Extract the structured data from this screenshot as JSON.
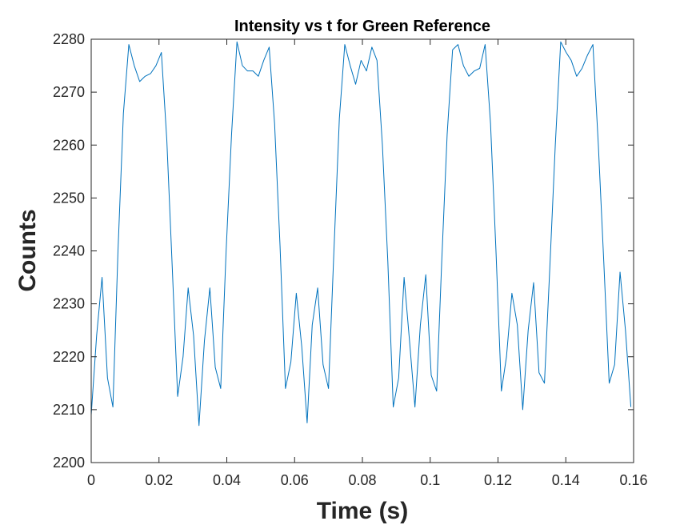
{
  "chart_data": {
    "type": "line",
    "title": "Intensity vs t for Green Reference",
    "xlabel": "Time (s)",
    "ylabel": "Counts",
    "xlim": [
      0,
      0.16
    ],
    "ylim": [
      2200,
      2280
    ],
    "grid": false,
    "legend": "none",
    "xticks": [
      "0",
      "0.02",
      "0.04",
      "0.06",
      "0.08",
      "0.1",
      "0.12",
      "0.14",
      "0.16"
    ],
    "yticks": [
      "2200",
      "2210",
      "2220",
      "2230",
      "2240",
      "2250",
      "2260",
      "2270",
      "2280"
    ],
    "series": [
      {
        "color": "#0072BD",
        "x": [
          0,
          0.0016,
          0.0032,
          0.0048,
          0.0064,
          0.0079,
          0.0095,
          0.0111,
          0.0127,
          0.0143,
          0.0159,
          0.0175,
          0.0191,
          0.0207,
          0.0223,
          0.0239,
          0.0255,
          0.0271,
          0.0286,
          0.0302,
          0.0318,
          0.0334,
          0.035,
          0.0366,
          0.0382,
          0.0398,
          0.0414,
          0.043,
          0.0446,
          0.0461,
          0.0477,
          0.0493,
          0.0509,
          0.0525,
          0.0541,
          0.0557,
          0.0573,
          0.0589,
          0.0605,
          0.0621,
          0.0637,
          0.0652,
          0.0668,
          0.0684,
          0.07,
          0.0716,
          0.0732,
          0.0748,
          0.0764,
          0.078,
          0.0796,
          0.0812,
          0.0828,
          0.0843,
          0.0859,
          0.0875,
          0.0891,
          0.0907,
          0.0923,
          0.0939,
          0.0955,
          0.0971,
          0.0987,
          0.1003,
          0.1019,
          0.1034,
          0.105,
          0.1066,
          0.1082,
          0.1098,
          0.1114,
          0.113,
          0.1146,
          0.1162,
          0.1178,
          0.1194,
          0.121,
          0.1225,
          0.1241,
          0.1257,
          0.1273,
          0.1289,
          0.1305,
          0.1321,
          0.1337,
          0.1353,
          0.1369,
          0.1385,
          0.1401,
          0.1416,
          0.1432,
          0.1448,
          0.1464,
          0.148,
          0.1496,
          0.1512,
          0.1528,
          0.1544,
          0.156,
          0.1576,
          0.1592
        ],
        "y": [
          2209,
          2224,
          2235,
          2216,
          2210.5,
          2240,
          2266,
          2279,
          2275,
          2272,
          2273,
          2273.5,
          2275,
          2277.5,
          2261,
          2237,
          2212.5,
          2220,
          2233,
          2224,
          2207,
          2223,
          2233,
          2218,
          2214,
          2240,
          2262,
          2279.5,
          2275,
          2274,
          2274,
          2273,
          2276,
          2278.5,
          2264,
          2241,
          2214,
          2219,
          2232,
          2222,
          2207.5,
          2226,
          2233,
          2218.5,
          2214,
          2240,
          2265,
          2279,
          2275,
          2271.5,
          2276,
          2274,
          2278.5,
          2276,
          2260,
          2238,
          2210.5,
          2216,
          2235,
          2223,
          2210.5,
          2226,
          2235.5,
          2216.5,
          2213.5,
          2238,
          2262,
          2278,
          2279,
          2275,
          2273,
          2274,
          2274.5,
          2279,
          2264,
          2240,
          2213.5,
          2220,
          2232,
          2226,
          2210,
          2225,
          2234,
          2217,
          2215,
          2237,
          2260,
          2279.5,
          2277.5,
          2276,
          2273,
          2274.5,
          2277,
          2279,
          2260,
          2238,
          2215,
          2218.5,
          2236,
          2225,
          2210.5
        ]
      }
    ]
  }
}
